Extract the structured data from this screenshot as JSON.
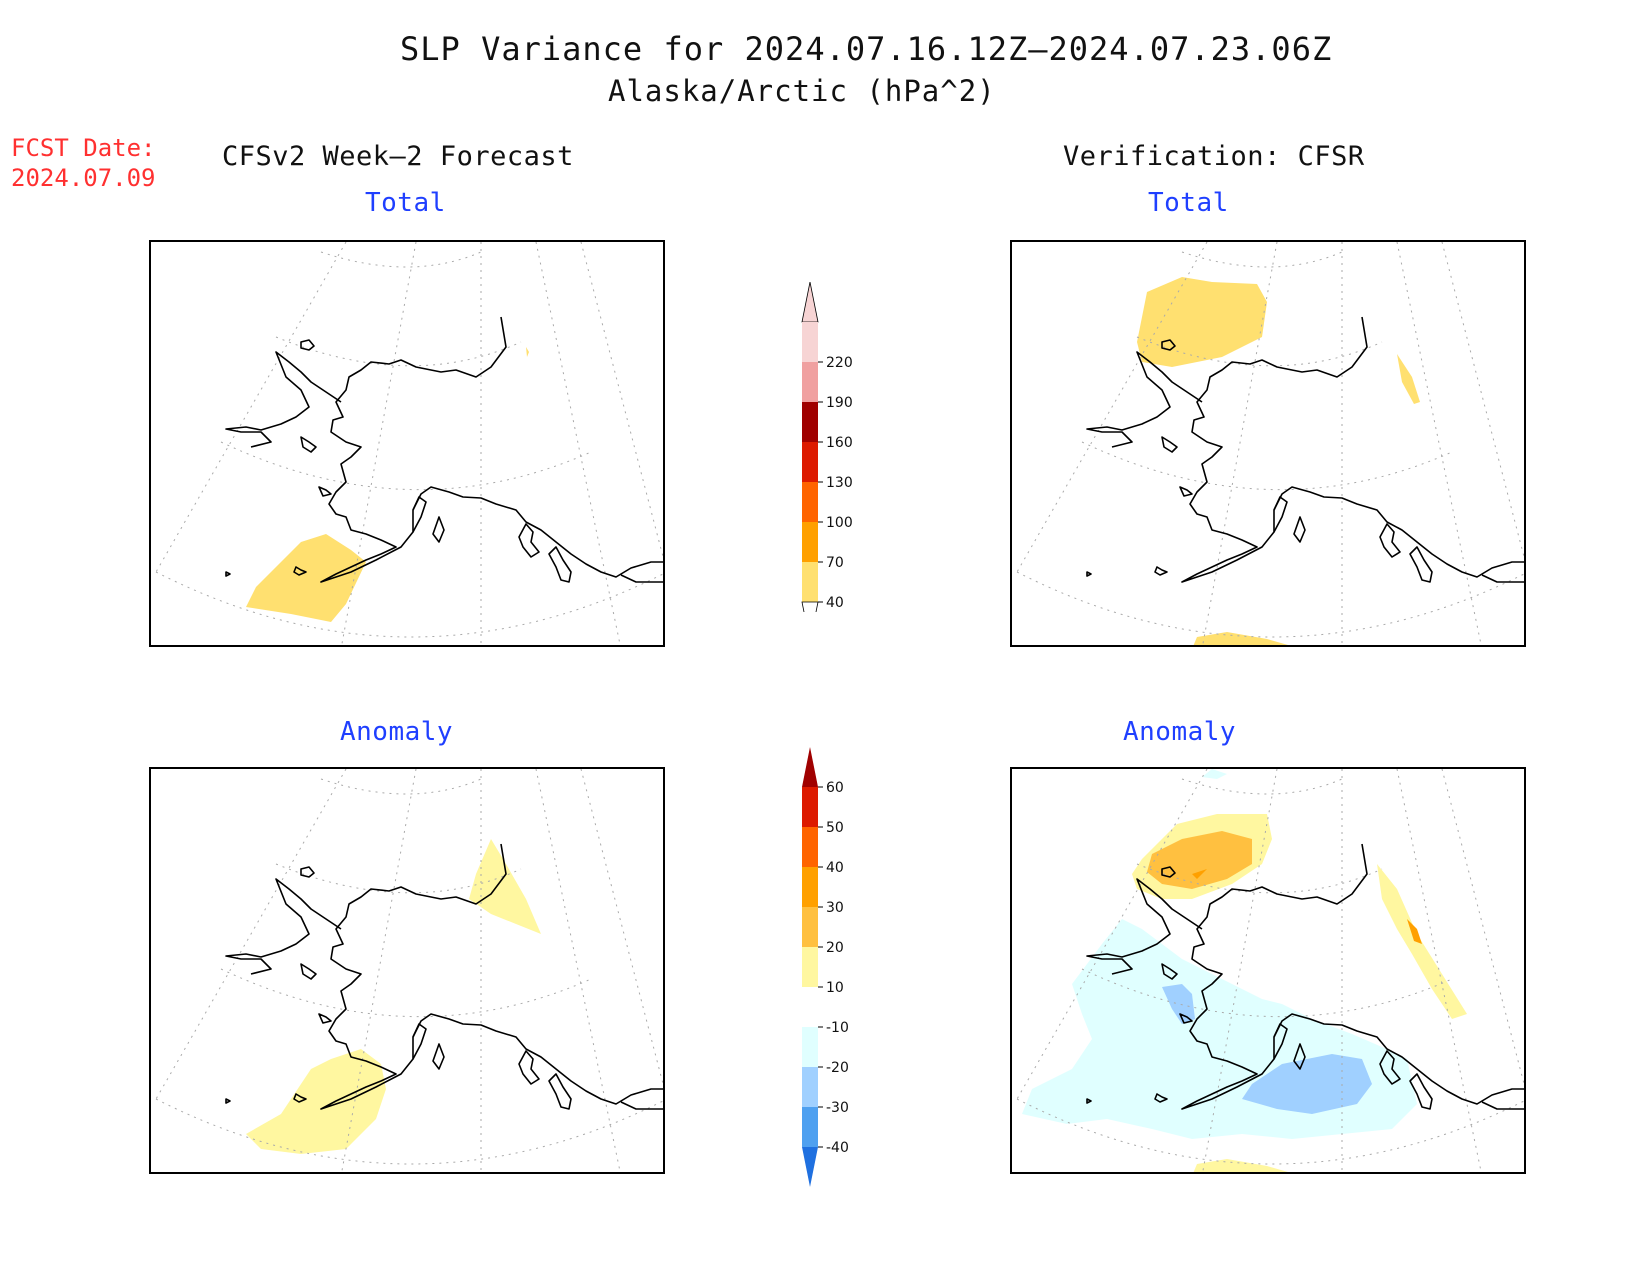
{
  "header": {
    "title": "SLP Variance for 2024.07.16.12Z—2024.07.23.06Z",
    "subtitle": "Alaska/Arctic (hPa^2)"
  },
  "fcst_date": {
    "label": "FCST Date:",
    "value": "2024.07.09"
  },
  "columns": {
    "left": "CFSv2 Week—2 Forecast",
    "right": "Verification: CFSR"
  },
  "panels": {
    "top_left": "Total",
    "top_right": "Total",
    "bottom_left": "Anomaly",
    "bottom_right": "Anomaly"
  },
  "colorbar_total": {
    "levels": [
      "220",
      "190",
      "160",
      "130",
      "100",
      "70",
      "40"
    ],
    "colors": [
      "#f7d4d4",
      "#f0a0a0",
      "#a00000",
      "#dd1a00",
      "#ff6400",
      "#ffa000",
      "#ffe070"
    ]
  },
  "colorbar_anomaly": {
    "levels": [
      "60",
      "50",
      "40",
      "30",
      "20",
      "10",
      "-10",
      "-20",
      "-30",
      "-40"
    ],
    "colors": [
      "#a00000",
      "#dd1a00",
      "#ff6400",
      "#ffa000",
      "#ffc040",
      "#fff7a0",
      "#ffffff",
      "#e0ffff",
      "#a0d0ff",
      "#4ea0f0",
      "#1f70e0"
    ]
  }
}
